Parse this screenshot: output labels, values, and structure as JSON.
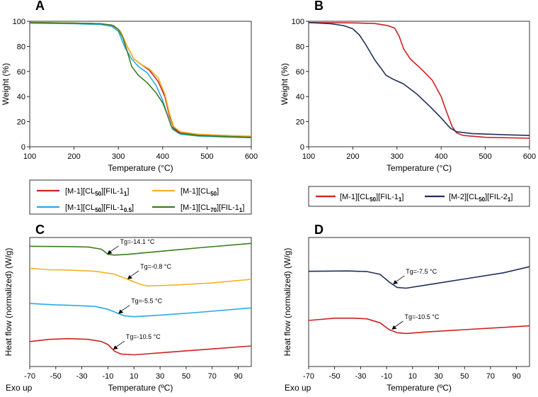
{
  "chart_data": [
    {
      "panel": "A",
      "type": "line",
      "xlabel": "Temperature (°C)",
      "ylabel": "Weight (%)",
      "xlim": [
        100,
        600
      ],
      "ylim": [
        0,
        100
      ],
      "xticks": [
        100,
        200,
        300,
        400,
        500,
        600
      ],
      "yticks": [
        0,
        20,
        40,
        60,
        80,
        100
      ],
      "series": [
        {
          "name": "[M-1][CL50][FIL-11]",
          "color": "#cc2222",
          "points": [
            [
              100,
              99
            ],
            [
              200,
              98.6
            ],
            [
              260,
              98
            ],
            [
              290,
              96.5
            ],
            [
              305,
              92
            ],
            [
              320,
              80
            ],
            [
              335,
              70
            ],
            [
              350,
              66
            ],
            [
              370,
              61
            ],
            [
              390,
              52
            ],
            [
              405,
              40
            ],
            [
              415,
              25
            ],
            [
              425,
              15
            ],
            [
              440,
              11
            ],
            [
              480,
              9.5
            ],
            [
              550,
              8.8
            ],
            [
              600,
              8.3
            ]
          ]
        },
        {
          "name": "[M-1][CL50]",
          "color": "#f5b325",
          "points": [
            [
              100,
              99
            ],
            [
              200,
              98.6
            ],
            [
              260,
              98
            ],
            [
              290,
              96.5
            ],
            [
              305,
              92
            ],
            [
              320,
              80
            ],
            [
              335,
              70
            ],
            [
              350,
              66
            ],
            [
              370,
              62
            ],
            [
              390,
              55
            ],
            [
              405,
              42
            ],
            [
              415,
              27
            ],
            [
              425,
              16
            ],
            [
              440,
              12
            ],
            [
              480,
              10
            ],
            [
              550,
              9
            ],
            [
              600,
              8.5
            ]
          ]
        },
        {
          "name": "[M-1][CL50][FIL-10.5]",
          "color": "#29abe2",
          "points": [
            [
              100,
              98.5
            ],
            [
              200,
              98
            ],
            [
              260,
              97.4
            ],
            [
              285,
              96
            ],
            [
              300,
              92
            ],
            [
              315,
              79
            ],
            [
              330,
              70
            ],
            [
              345,
              64
            ],
            [
              365,
              59
            ],
            [
              385,
              49
            ],
            [
              400,
              37
            ],
            [
              412,
              24
            ],
            [
              422,
              14
            ],
            [
              440,
              10
            ],
            [
              480,
              8.5
            ],
            [
              550,
              7.7
            ],
            [
              600,
              7.2
            ]
          ]
        },
        {
          "name": "[M-1][CL70][FIL-11]",
          "color": "#3a7d22",
          "points": [
            [
              100,
              99
            ],
            [
              200,
              98.5
            ],
            [
              260,
              98
            ],
            [
              285,
              97
            ],
            [
              300,
              93.5
            ],
            [
              310,
              87
            ],
            [
              320,
              76
            ],
            [
              330,
              64
            ],
            [
              345,
              57
            ],
            [
              365,
              51
            ],
            [
              385,
              43
            ],
            [
              400,
              35
            ],
            [
              410,
              26
            ],
            [
              420,
              16
            ],
            [
              435,
              11
            ],
            [
              480,
              9
            ],
            [
              550,
              8
            ],
            [
              600,
              7.5
            ]
          ]
        }
      ]
    },
    {
      "panel": "B",
      "type": "line",
      "xlabel": "Temperature (°C)",
      "ylabel": "Weight (%)",
      "xlim": [
        100,
        600
      ],
      "ylim": [
        0,
        100
      ],
      "xticks": [
        100,
        200,
        300,
        400,
        500,
        600
      ],
      "yticks": [
        0,
        20,
        40,
        60,
        80,
        100
      ],
      "series": [
        {
          "name": "[M-1][CL50][FIL-11]",
          "color": "#cc2222",
          "points": [
            [
              100,
              99
            ],
            [
              200,
              98.7
            ],
            [
              250,
              98.2
            ],
            [
              280,
              96.5
            ],
            [
              295,
              94.5
            ],
            [
              305,
              88
            ],
            [
              315,
              78
            ],
            [
              330,
              70
            ],
            [
              355,
              62
            ],
            [
              380,
              53
            ],
            [
              400,
              40
            ],
            [
              412,
              28
            ],
            [
              425,
              16
            ],
            [
              435,
              11
            ],
            [
              450,
              9
            ],
            [
              500,
              7.5
            ],
            [
              600,
              6.8
            ]
          ]
        },
        {
          "name": "[M-2][CL50][FIL-21]",
          "color": "#1f2f5c",
          "points": [
            [
              100,
              99
            ],
            [
              150,
              98
            ],
            [
              180,
              96.5
            ],
            [
              200,
              94
            ],
            [
              215,
              89
            ],
            [
              230,
              81
            ],
            [
              250,
              69
            ],
            [
              265,
              62
            ],
            [
              275,
              57
            ],
            [
              290,
              54
            ],
            [
              315,
              50
            ],
            [
              345,
              42
            ],
            [
              375,
              32
            ],
            [
              400,
              23
            ],
            [
              420,
              15
            ],
            [
              435,
              12
            ],
            [
              470,
              10.5
            ],
            [
              550,
              9.5
            ],
            [
              600,
              9
            ]
          ]
        }
      ]
    },
    {
      "panel": "C",
      "type": "line",
      "xlabel": "Temperature (ºC)",
      "ylabel": "Heat flow (normalized) (W/g)",
      "xlim": [
        -70,
        100
      ],
      "xticks": [
        -70,
        -50,
        -30,
        -10,
        10,
        30,
        50,
        70,
        90
      ],
      "corner_label": "Exo up",
      "series": [
        {
          "name": "[M-1][CL70][FIL-11]",
          "color": "#3a7d22",
          "points": [
            [
              -70,
              2.4
            ],
            [
              -40,
              2.38
            ],
            [
              -25,
              2.35
            ],
            [
              -15,
              2.2
            ],
            [
              -10,
              1.85
            ],
            [
              -5,
              1.8
            ],
            [
              5,
              1.85
            ],
            [
              30,
              2.05
            ],
            [
              60,
              2.3
            ],
            [
              100,
              2.6
            ]
          ],
          "annotation": {
            "text": "Tg=-14.1 °C",
            "x": -10.5,
            "y": 1.85
          }
        },
        {
          "name": "[M-1][CL50]",
          "color": "#f5b325",
          "points": [
            [
              -70,
              0.9
            ],
            [
              -55,
              0.8
            ],
            [
              -40,
              0.78
            ],
            [
              -20,
              0.7
            ],
            [
              -5,
              0.5
            ],
            [
              5,
              0.15
            ],
            [
              15,
              -0.2
            ],
            [
              20,
              -0.3
            ],
            [
              40,
              -0.25
            ],
            [
              70,
              -0.1
            ],
            [
              100,
              0.15
            ]
          ],
          "annotation": {
            "text": "Tg=-0.8 °C",
            "x": 5,
            "y": 0.15
          }
        },
        {
          "name": "[M-1][CL50][FIL-10.5]",
          "color": "#29abe2",
          "points": [
            [
              -70,
              -1.5
            ],
            [
              -50,
              -1.6
            ],
            [
              -40,
              -1.62
            ],
            [
              -20,
              -1.7
            ],
            [
              -10,
              -1.9
            ],
            [
              -3,
              -2.15
            ],
            [
              3,
              -2.35
            ],
            [
              10,
              -2.4
            ],
            [
              30,
              -2.3
            ],
            [
              60,
              -2.1
            ],
            [
              100,
              -1.8
            ]
          ],
          "annotation": {
            "text": "Tg=-5.5 °C",
            "x": -2,
            "y": -2.2
          }
        },
        {
          "name": "[M-1][CL50][FIL-11]",
          "color": "#cc2222",
          "points": [
            [
              -70,
              -4.1
            ],
            [
              -55,
              -3.95
            ],
            [
              -40,
              -3.9
            ],
            [
              -25,
              -3.95
            ],
            [
              -15,
              -4.1
            ],
            [
              -10,
              -4.3
            ],
            [
              -5,
              -4.75
            ],
            [
              0,
              -4.95
            ],
            [
              10,
              -5.0
            ],
            [
              40,
              -4.8
            ],
            [
              70,
              -4.6
            ],
            [
              100,
              -4.4
            ]
          ],
          "annotation": {
            "text": "Tg=-10.5 °C",
            "x": -6,
            "y": -4.65
          }
        }
      ]
    },
    {
      "panel": "D",
      "type": "line",
      "xlabel": "Temperature (ºC)",
      "ylabel": "Heat flow (normalized) (W/g)",
      "xlim": [
        -70,
        100
      ],
      "xticks": [
        -70,
        -50,
        -30,
        -10,
        10,
        30,
        50,
        70,
        90
      ],
      "corner_label": "Exo up",
      "series": [
        {
          "name": "[M-2][CL50][FIL-21]",
          "color": "#1f2f5c",
          "points": [
            [
              -70,
              0
            ],
            [
              -40,
              0.02
            ],
            [
              -25,
              -0.02
            ],
            [
              -15,
              -0.2
            ],
            [
              -8,
              -0.7
            ],
            [
              -2,
              -1.05
            ],
            [
              5,
              -1.1
            ],
            [
              20,
              -0.9
            ],
            [
              50,
              -0.5
            ],
            [
              80,
              -0.1
            ],
            [
              100,
              0.3
            ]
          ],
          "annotation": {
            "text": "Tg=-7.5 °C",
            "x": -5,
            "y": -0.85
          }
        },
        {
          "name": "[M-1][CL50][FIL-11]",
          "color": "#cc2222",
          "points": [
            [
              -70,
              -3.2
            ],
            [
              -50,
              -3.05
            ],
            [
              -35,
              -3.05
            ],
            [
              -25,
              -3.1
            ],
            [
              -15,
              -3.35
            ],
            [
              -8,
              -3.8
            ],
            [
              -2,
              -4.0
            ],
            [
              5,
              -4.05
            ],
            [
              20,
              -3.95
            ],
            [
              50,
              -3.8
            ],
            [
              80,
              -3.65
            ],
            [
              100,
              -3.55
            ]
          ],
          "annotation": {
            "text": "Tg=-10.5 °C",
            "x": -6,
            "y": -3.8
          }
        }
      ]
    }
  ],
  "legends": {
    "left": [
      {
        "base": "[M-1][CL",
        "sub": "50",
        "mid": "][FIL-1",
        "sub2": "1",
        "end": "]",
        "color": "#cc2222"
      },
      {
        "base": "[M-1][CL",
        "sub": "50",
        "mid": "]",
        "sub2": "",
        "end": "",
        "color": "#f5b325"
      },
      {
        "base": "[M-1][CL",
        "sub": "50",
        "mid": "][FIL-1",
        "sub2": "0.5",
        "end": "]",
        "color": "#29abe2"
      },
      {
        "base": "[M-1][CL",
        "sub": "70",
        "mid": "][FIL-1",
        "sub2": "1",
        "end": "]",
        "color": "#3a7d22"
      }
    ],
    "right": [
      {
        "base": "[M-1][CL",
        "sub": "50",
        "mid": "][FIL-1",
        "sub2": "1",
        "end": "]",
        "color": "#cc2222"
      },
      {
        "base": "[M-2][CL",
        "sub": "50",
        "mid": "][FIL-2",
        "sub2": "1",
        "end": "]",
        "color": "#1f2f5c"
      }
    ]
  }
}
